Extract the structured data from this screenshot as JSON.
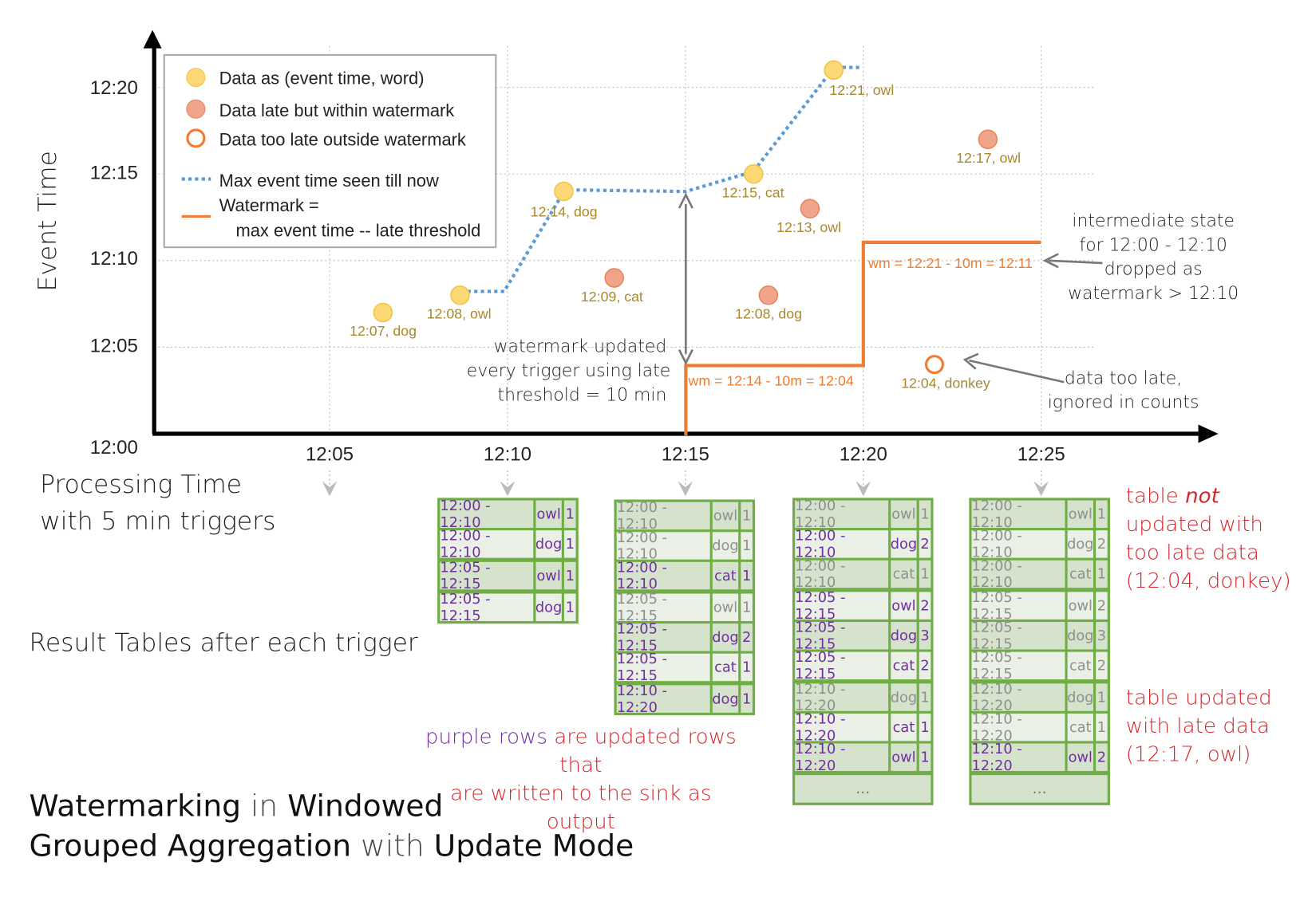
{
  "axes": {
    "y_label": "Event Time",
    "x_label_line1": "Processing Time",
    "x_label_line2": "with 5 min triggers",
    "y_ticks": [
      "12:00",
      "12:05",
      "12:10",
      "12:15",
      "12:20"
    ],
    "x_ticks": [
      "12:05",
      "12:10",
      "12:15",
      "12:20",
      "12:25"
    ]
  },
  "legend": {
    "on_time": "Data as (event time, word)",
    "late": "Data late but within watermark",
    "too_late": "Data too late outside watermark",
    "max_line": "Max event time seen till now",
    "wm_line1": "Watermark =",
    "wm_line2": "max event time -- late threshold"
  },
  "colors": {
    "on_time": "#fcd877",
    "late": "#f0a58a",
    "too_late": "#ee7d31",
    "max_line": "#5b9bd5",
    "watermark": "#ed7d31",
    "table_border": "#70ad47",
    "updated_text": "#7030a0",
    "annotation_red": "#d7262b"
  },
  "points": [
    {
      "label": "12:07, dog",
      "proc": "12:06:30",
      "event": "12:07",
      "kind": "on_time"
    },
    {
      "label": "12:08, owl",
      "proc": "12:08:40",
      "event": "12:08",
      "kind": "on_time"
    },
    {
      "label": "12:14, dog",
      "proc": "12:11:35",
      "event": "12:14",
      "kind": "on_time"
    },
    {
      "label": "12:09, cat",
      "proc": "12:13:00",
      "event": "12:09",
      "kind": "late"
    },
    {
      "label": "12:15, cat",
      "proc": "12:16:55",
      "event": "12:15",
      "kind": "on_time"
    },
    {
      "label": "12:08, dog",
      "proc": "12:17:20",
      "event": "12:08",
      "kind": "late"
    },
    {
      "label": "12:13, owl",
      "proc": "12:18:30",
      "event": "12:13",
      "kind": "late"
    },
    {
      "label": "12:21, owl",
      "proc": "12:19:10",
      "event": "12:21",
      "kind": "on_time"
    },
    {
      "label": "12:04, donkey",
      "proc": "12:22:00",
      "event": "12:04",
      "kind": "too_late"
    },
    {
      "label": "12:17, owl",
      "proc": "12:23:30",
      "event": "12:17",
      "kind": "late"
    }
  ],
  "watermarks": [
    "wm = 12:14 - 10m = 12:04",
    "wm = 12:21 - 10m = 12:11"
  ],
  "annotations": {
    "wm_updated": [
      "watermark updated",
      "every trigger using late",
      "threshold = 10 min"
    ],
    "intermediate": [
      "intermediate state",
      "for 12:00 - 12:10",
      "dropped as",
      "watermark > 12:10"
    ],
    "too_late": [
      "data too late,",
      "ignored in counts"
    ],
    "result_tables": "Result Tables after each trigger",
    "purple_rows": "purple rows",
    "purple_rest": " are updated rows that",
    "purple_line2": "are written to the sink as output",
    "not_updated": {
      "a": "table ",
      "b": "not",
      "c": "updated with",
      "d": "too late data",
      "e": "(12:04, donkey)"
    },
    "updated_late": [
      "table updated",
      "with late data",
      "(12:17, owl)"
    ]
  },
  "title": {
    "w1": "Watermarking",
    "w2": " in ",
    "w3": "Windowed",
    "w4": "Grouped Aggregation",
    "w5": " with ",
    "w6": "Update Mode"
  },
  "tables": [
    {
      "trigger": "12:10",
      "ellipsis": "",
      "rows": [
        {
          "window": "12:00 - 12:10",
          "word": "owl",
          "count": "1",
          "updated": true
        },
        {
          "window": "12:00 - 12:10",
          "word": "dog",
          "count": "1",
          "updated": true
        },
        {
          "window": "12:05 - 12:15",
          "word": "owl",
          "count": "1",
          "updated": true
        },
        {
          "window": "12:05 - 12:15",
          "word": "dog",
          "count": "1",
          "updated": true
        }
      ]
    },
    {
      "trigger": "12:15",
      "ellipsis": "",
      "rows": [
        {
          "window": "12:00 - 12:10",
          "word": "owl",
          "count": "1",
          "updated": false
        },
        {
          "window": "12:00 - 12:10",
          "word": "dog",
          "count": "1",
          "updated": false
        },
        {
          "window": "12:00 - 12:10",
          "word": "cat",
          "count": "1",
          "updated": true
        },
        {
          "window": "12:05 - 12:15",
          "word": "owl",
          "count": "1",
          "updated": false
        },
        {
          "window": "12:05 - 12:15",
          "word": "dog",
          "count": "2",
          "updated": true
        },
        {
          "window": "12:05 - 12:15",
          "word": "cat",
          "count": "1",
          "updated": true
        },
        {
          "window": "12:10 - 12:20",
          "word": "dog",
          "count": "1",
          "updated": true
        }
      ]
    },
    {
      "trigger": "12:20",
      "ellipsis": "...",
      "rows": [
        {
          "window": "12:00 - 12:10",
          "word": "owl",
          "count": "1",
          "updated": false
        },
        {
          "window": "12:00 - 12:10",
          "word": "dog",
          "count": "2",
          "updated": true
        },
        {
          "window": "12:00 - 12:10",
          "word": "cat",
          "count": "1",
          "updated": false
        },
        {
          "window": "12:05 - 12:15",
          "word": "owl",
          "count": "2",
          "updated": true
        },
        {
          "window": "12:05 - 12:15",
          "word": "dog",
          "count": "3",
          "updated": true
        },
        {
          "window": "12:05 - 12:15",
          "word": "cat",
          "count": "2",
          "updated": true
        },
        {
          "window": "12:10 - 12:20",
          "word": "dog",
          "count": "1",
          "updated": false
        },
        {
          "window": "12:10 - 12:20",
          "word": "cat",
          "count": "1",
          "updated": true
        },
        {
          "window": "12:10 - 12:20",
          "word": "owl",
          "count": "1",
          "updated": true
        }
      ]
    },
    {
      "trigger": "12:25",
      "ellipsis": "...",
      "rows": [
        {
          "window": "12:00 - 12:10",
          "word": "owl",
          "count": "1",
          "updated": false
        },
        {
          "window": "12:00 - 12:10",
          "word": "dog",
          "count": "2",
          "updated": false
        },
        {
          "window": "12:00 - 12:10",
          "word": "cat",
          "count": "1",
          "updated": false
        },
        {
          "window": "12:05 - 12:15",
          "word": "owl",
          "count": "2",
          "updated": false
        },
        {
          "window": "12:05 - 12:15",
          "word": "dog",
          "count": "3",
          "updated": false
        },
        {
          "window": "12:05 - 12:15",
          "word": "cat",
          "count": "2",
          "updated": false
        },
        {
          "window": "12:10 - 12:20",
          "word": "dog",
          "count": "1",
          "updated": false
        },
        {
          "window": "12:10 - 12:20",
          "word": "cat",
          "count": "1",
          "updated": false
        },
        {
          "window": "12:10 - 12:20",
          "word": "owl",
          "count": "2",
          "updated": true
        }
      ]
    }
  ]
}
